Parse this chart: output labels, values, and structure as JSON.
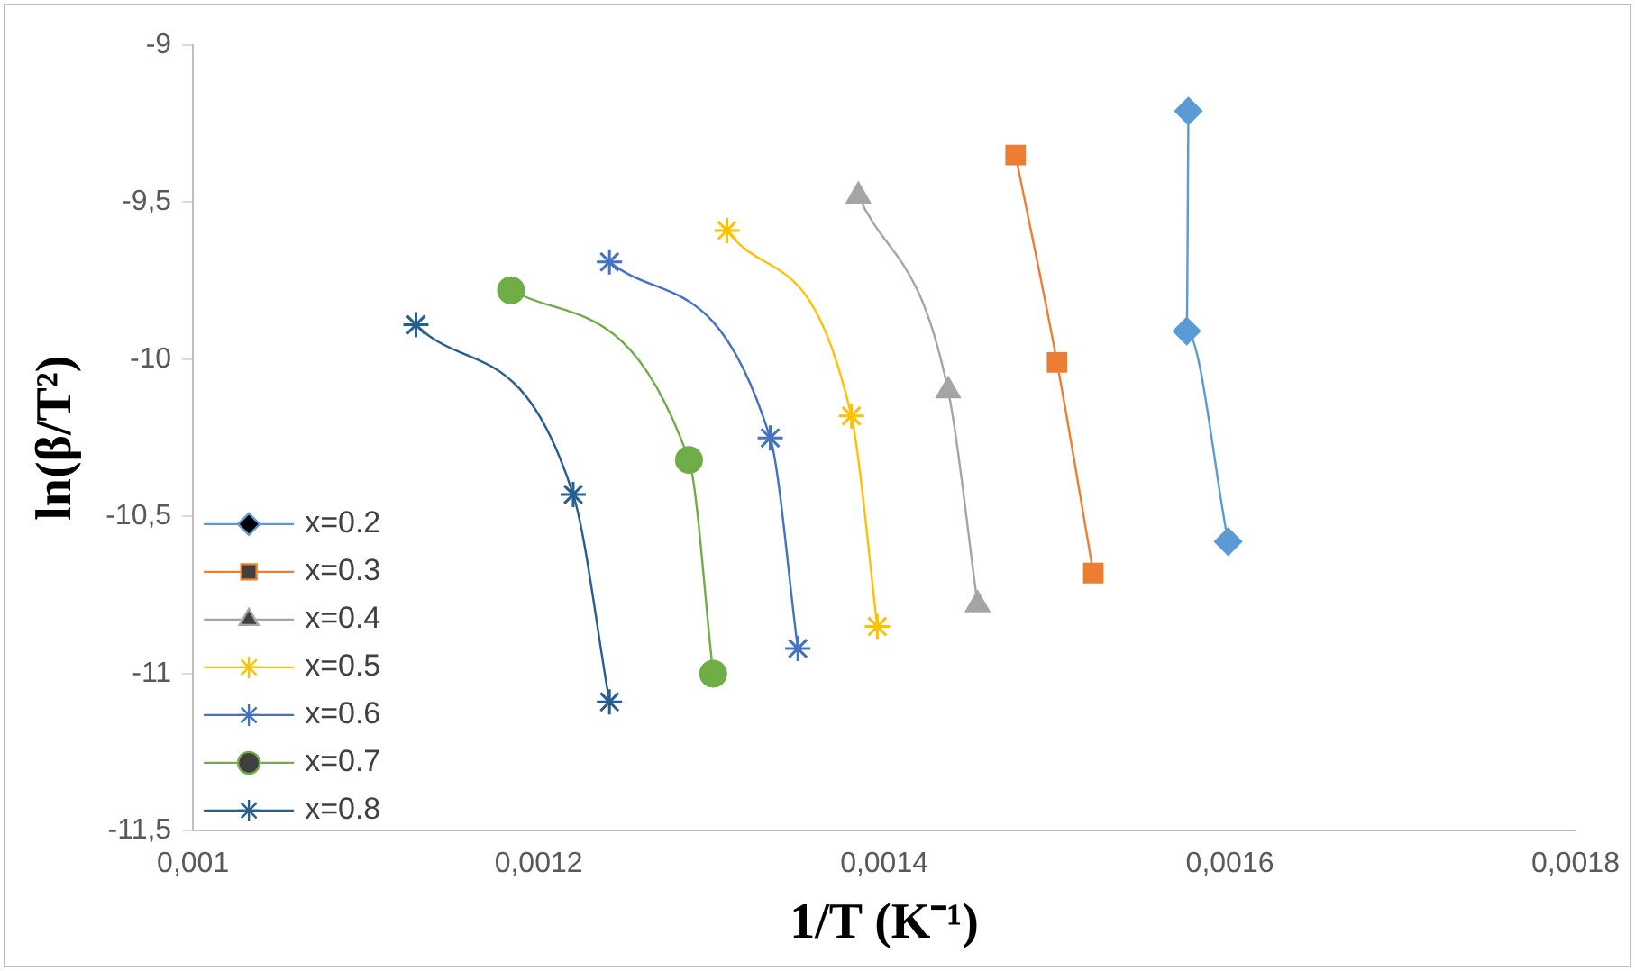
{
  "chart_data": {
    "type": "line",
    "xlabel": "1/T (K⁻¹)",
    "ylabel": "ln(β/T²)",
    "xlim": [
      0.001,
      0.0018
    ],
    "xticks": [
      {
        "value": 0.001,
        "label": "0,001"
      },
      {
        "value": 0.0012,
        "label": "0,0012"
      },
      {
        "value": 0.0014,
        "label": "0,0014"
      },
      {
        "value": 0.0016,
        "label": "0,0016"
      },
      {
        "value": 0.0018,
        "label": "0,0018"
      }
    ],
    "ylim": [
      -11.5,
      -9
    ],
    "yticks": [
      {
        "value": -11.5,
        "label": "-11,5"
      },
      {
        "value": -11,
        "label": "-11"
      },
      {
        "value": -10.5,
        "label": "-10,5"
      },
      {
        "value": -10,
        "label": "-10"
      },
      {
        "value": -9.5,
        "label": "-9,5"
      },
      {
        "value": -9,
        "label": "-9"
      }
    ],
    "grid": false,
    "legend": "left",
    "series": [
      {
        "name": "x=0.2",
        "color": "#5b9bd5",
        "marker": "diamond",
        "x": [
          0.001576,
          0.001575,
          0.001599
        ],
        "values": [
          -9.21,
          -9.91,
          -10.58
        ]
      },
      {
        "name": "x=0.3",
        "color": "#ed7d31",
        "marker": "square",
        "x": [
          0.001476,
          0.0015,
          0.001521
        ],
        "values": [
          -9.35,
          -10.01,
          -10.68
        ]
      },
      {
        "name": "x=0.4",
        "color": "#a5a5a5",
        "marker": "triangle",
        "x": [
          0.001385,
          0.001437,
          0.001454
        ],
        "values": [
          -9.48,
          -10.1,
          -10.78
        ]
      },
      {
        "name": "x=0.5",
        "color": "#ffc000",
        "marker": "cross",
        "x": [
          0.001309,
          0.001381,
          0.001396
        ],
        "values": [
          -9.59,
          -10.18,
          -10.85
        ]
      },
      {
        "name": "x=0.6",
        "color": "#4472c4",
        "marker": "cross",
        "x": [
          0.001241,
          0.001334,
          0.00135
        ],
        "values": [
          -9.69,
          -10.25,
          -10.92
        ]
      },
      {
        "name": "x=0.7",
        "color": "#70ad47",
        "marker": "circle",
        "x": [
          0.001184,
          0.001287,
          0.001301
        ],
        "values": [
          -9.78,
          -10.32,
          -11.0
        ]
      },
      {
        "name": "x=0.8",
        "color": "#255e91",
        "marker": "cross",
        "x": [
          0.001129,
          0.00122,
          0.001241
        ],
        "values": [
          -9.89,
          -10.43,
          -11.09
        ]
      }
    ]
  }
}
